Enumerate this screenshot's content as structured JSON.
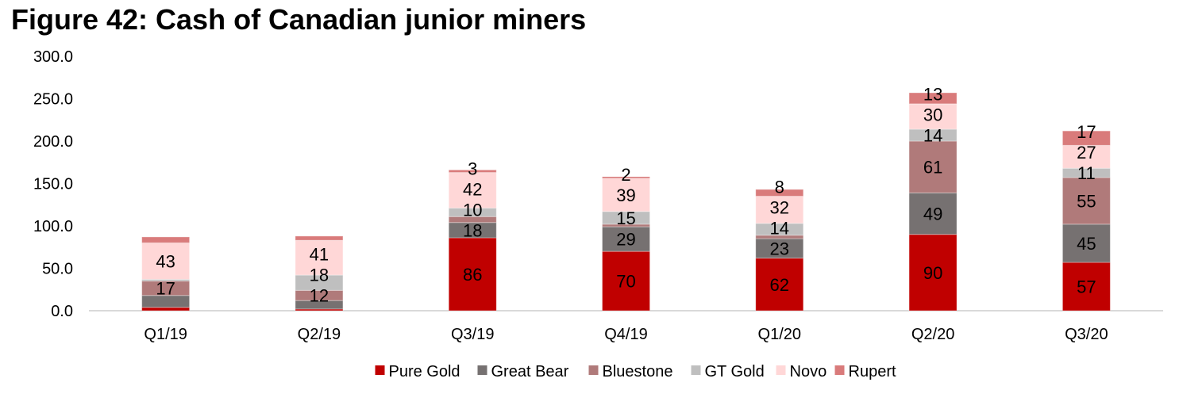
{
  "title": "Figure 42: Cash of Canadian junior miners",
  "chart_data": {
    "type": "bar",
    "stacked": true,
    "title": "Figure 42: Cash of Canadian junior miners",
    "xlabel": "",
    "ylabel": "",
    "ylim": [
      0,
      300
    ],
    "yticks": [
      "0.0",
      "50.0",
      "100.0",
      "150.0",
      "200.0",
      "250.0",
      "300.0"
    ],
    "grid": false,
    "legend_position": "bottom",
    "categories": [
      "Q1/19",
      "Q2/19",
      "Q3/19",
      "Q4/19",
      "Q1/20",
      "Q2/20",
      "Q3/20"
    ],
    "series": [
      {
        "name": "Pure Gold",
        "color": "#c00000",
        "values": [
          4,
          2,
          86,
          70,
          62,
          90,
          57
        ],
        "labels_shown": [
          false,
          false,
          true,
          true,
          true,
          true,
          true
        ]
      },
      {
        "name": "Great Bear",
        "color": "#767171",
        "values": [
          14,
          10,
          18,
          29,
          23,
          49,
          45
        ],
        "labels_shown": [
          false,
          false,
          true,
          true,
          true,
          true,
          true
        ]
      },
      {
        "name": "Bluestone",
        "color": "#b07a7a",
        "values": [
          17,
          12,
          7,
          3,
          4,
          61,
          55
        ],
        "labels_shown": [
          true,
          true,
          false,
          false,
          false,
          true,
          true
        ]
      },
      {
        "name": "GT Gold",
        "color": "#bfbfbf",
        "values": [
          2,
          18,
          10,
          15,
          14,
          14,
          11
        ],
        "labels_shown": [
          false,
          true,
          true,
          true,
          true,
          true,
          true
        ]
      },
      {
        "name": "Novo",
        "color": "#ffd7d7",
        "values": [
          43,
          41,
          42,
          39,
          32,
          30,
          27
        ],
        "labels_shown": [
          true,
          true,
          true,
          true,
          true,
          true,
          true
        ]
      },
      {
        "name": "Rupert",
        "color": "#d97b7b",
        "values": [
          7,
          5,
          3,
          2,
          8,
          13,
          17
        ],
        "labels_shown": [
          false,
          false,
          true,
          true,
          true,
          true,
          true
        ]
      }
    ]
  }
}
